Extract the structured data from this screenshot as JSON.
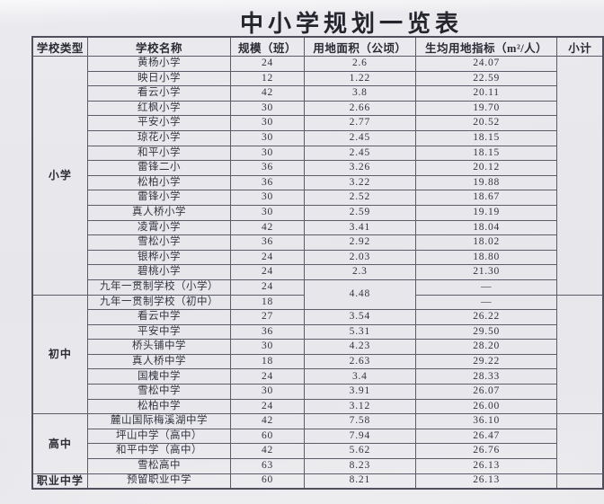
{
  "page_title": "中小学规划一览表",
  "colors": {
    "paper": "#e8e8ec",
    "grid_line": "#5c5c68",
    "text": "#2f2f3a"
  },
  "table": {
    "headers": [
      "学校类型",
      "学校名称",
      "规模（班）",
      "用地面积（公顷）",
      "生均用地指标（m²/人）",
      "小计"
    ],
    "subtotal_placeholder": "",
    "sections": [
      {
        "type": "小学",
        "rows": [
          {
            "name": "黄杨小学",
            "classes": "24",
            "area": "2.6",
            "per_capita": "24.07"
          },
          {
            "name": "映日小学",
            "classes": "12",
            "area": "1.22",
            "per_capita": "22.59"
          },
          {
            "name": "看云小学",
            "classes": "42",
            "area": "3.8",
            "per_capita": "20.11"
          },
          {
            "name": "红枫小学",
            "classes": "30",
            "area": "2.66",
            "per_capita": "19.70"
          },
          {
            "name": "平安小学",
            "classes": "30",
            "area": "2.77",
            "per_capita": "20.52"
          },
          {
            "name": "琼花小学",
            "classes": "30",
            "area": "2.45",
            "per_capita": "18.15"
          },
          {
            "name": "和平小学",
            "classes": "30",
            "area": "2.45",
            "per_capita": "18.15"
          },
          {
            "name": "雷锋二小",
            "classes": "36",
            "area": "3.26",
            "per_capita": "20.12"
          },
          {
            "name": "松柏小学",
            "classes": "36",
            "area": "3.22",
            "per_capita": "19.88"
          },
          {
            "name": "雷锋小学",
            "classes": "30",
            "area": "2.52",
            "per_capita": "18.67"
          },
          {
            "name": "真人桥小学",
            "classes": "30",
            "area": "2.59",
            "per_capita": "19.19"
          },
          {
            "name": "凌霄小学",
            "classes": "42",
            "area": "3.41",
            "per_capita": "18.04"
          },
          {
            "name": "雪松小学",
            "classes": "36",
            "area": "2.92",
            "per_capita": "18.02"
          },
          {
            "name": "银桦小学",
            "classes": "24",
            "area": "2.03",
            "per_capita": "18.80"
          },
          {
            "name": "碧桃小学",
            "classes": "24",
            "area": "2.3",
            "per_capita": "21.30"
          },
          {
            "name": "九年一贯制学校（小学）",
            "classes": "24",
            "area": "4.48",
            "area_rowspan": 2,
            "per_capita": "—"
          }
        ]
      },
      {
        "type": "初中",
        "rows": [
          {
            "name": "九年一贯制学校（初中）",
            "classes": "18",
            "area": null,
            "per_capita": "—"
          },
          {
            "name": "看云中学",
            "classes": "27",
            "area": "3.54",
            "per_capita": "26.22"
          },
          {
            "name": "平安中学",
            "classes": "36",
            "area": "5.31",
            "per_capita": "29.50"
          },
          {
            "name": "桥头铺中学",
            "classes": "30",
            "area": "4.23",
            "per_capita": "28.20"
          },
          {
            "name": "真人桥中学",
            "classes": "18",
            "area": "2.63",
            "per_capita": "29.22"
          },
          {
            "name": "国槐中学",
            "classes": "24",
            "area": "3.4",
            "per_capita": "28.33"
          },
          {
            "name": "雪松中学",
            "classes": "30",
            "area": "3.91",
            "per_capita": "26.07"
          },
          {
            "name": "松柏中学",
            "classes": "24",
            "area": "3.12",
            "per_capita": "26.00"
          }
        ]
      },
      {
        "type": "高中",
        "rows": [
          {
            "name": "麓山国际梅溪湖中学",
            "classes": "42",
            "area": "7.58",
            "per_capita": "36.10"
          },
          {
            "name": "坪山中学（高中）",
            "classes": "60",
            "area": "7.94",
            "per_capita": "26.47"
          },
          {
            "name": "和平中学（高中）",
            "classes": "42",
            "area": "5.62",
            "per_capita": "26.76"
          },
          {
            "name": "雪松高中",
            "classes": "63",
            "area": "8.23",
            "per_capita": "26.13"
          }
        ]
      },
      {
        "type": "职业中学",
        "rows": [
          {
            "name": "预留职业中学",
            "classes": "60",
            "area": "8.21",
            "per_capita": "26.13"
          }
        ]
      }
    ]
  }
}
